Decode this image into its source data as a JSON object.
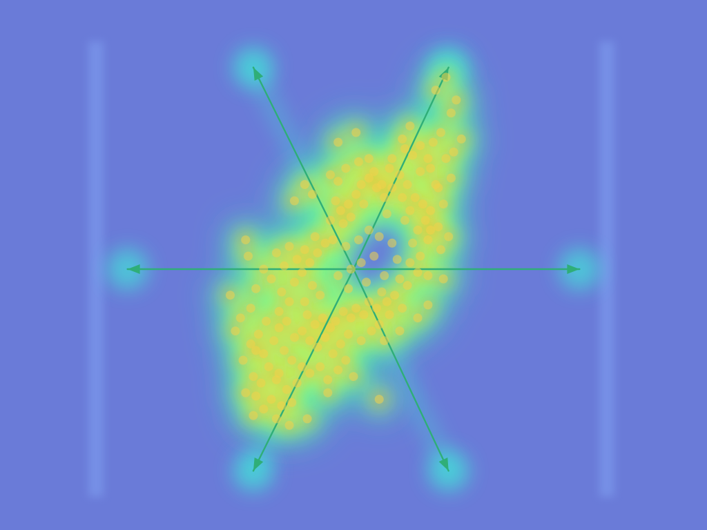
{
  "colors": {
    "background": "#6a7bd8",
    "frame_glow": "#7f9ff0",
    "arrow": "#2fae78",
    "arrow_glow": "#38ffd8",
    "points": "#f0d24a",
    "heat_low": "#38f0b8",
    "heat_mid": "#e8ff48",
    "heat_high": "#ff7a1e"
  },
  "chart_data": {
    "type": "scatter",
    "title": "",
    "xlabel": "",
    "ylabel": "",
    "grid": false,
    "legend": "none",
    "overlay": "density-heatmap",
    "xlim": [
      -10,
      10
    ],
    "ylim": [
      -7,
      7
    ],
    "arrows": [
      {
        "from": [
          0,
          0
        ],
        "to": [
          -8.8,
          0
        ]
      },
      {
        "from": [
          0,
          0
        ],
        "to": [
          8.8,
          0
        ]
      },
      {
        "from": [
          0,
          0
        ],
        "to": [
          -3.9,
          6.2
        ]
      },
      {
        "from": [
          0,
          0
        ],
        "to": [
          3.7,
          6.2
        ]
      },
      {
        "from": [
          0,
          0
        ],
        "to": [
          -3.9,
          -6.2
        ]
      },
      {
        "from": [
          0,
          0
        ],
        "to": [
          3.7,
          -6.2
        ]
      }
    ],
    "series": [
      {
        "values": [
          [
            3.6,
            5.9
          ],
          [
            3.8,
            4.8
          ],
          [
            3.4,
            4.2
          ],
          [
            3.1,
            3.9
          ],
          [
            3.6,
            3.4
          ],
          [
            3.8,
            2.8
          ],
          [
            3.2,
            2.6
          ],
          [
            2.9,
            3.4
          ],
          [
            2.6,
            3.0
          ],
          [
            1.4,
            3.1
          ],
          [
            1.8,
            2.9
          ],
          [
            0.8,
            3.0
          ],
          [
            1.1,
            2.6
          ],
          [
            2.1,
            2.6
          ],
          [
            2.4,
            2.2
          ],
          [
            2.7,
            2.0
          ],
          [
            3.0,
            1.8
          ],
          [
            2.8,
            1.5
          ],
          [
            2.5,
            1.2
          ],
          [
            2.9,
            0.9
          ],
          [
            3.3,
            1.3
          ],
          [
            2.2,
            1.8
          ],
          [
            1.9,
            2.2
          ],
          [
            1.5,
            2.5
          ],
          [
            1.2,
            2.2
          ],
          [
            0.9,
            2.5
          ],
          [
            0.6,
            2.8
          ],
          [
            0.3,
            2.6
          ],
          [
            0.1,
            2.3
          ],
          [
            -0.2,
            2.0
          ],
          [
            -0.5,
            1.8
          ],
          [
            -0.7,
            2.1
          ],
          [
            -0.9,
            1.5
          ],
          [
            -0.4,
            1.4
          ],
          [
            -0.6,
            2.7
          ],
          [
            -0.1,
            1.6
          ],
          [
            0.4,
            2.0
          ],
          [
            1.3,
            1.7
          ],
          [
            2.0,
            1.5
          ],
          [
            2.3,
            0.8
          ],
          [
            2.6,
            0.4
          ],
          [
            2.2,
            0.2
          ],
          [
            2.5,
            -0.1
          ],
          [
            2.9,
            -0.2
          ],
          [
            2.1,
            -0.5
          ],
          [
            1.8,
            -0.3
          ],
          [
            1.6,
            -0.8
          ],
          [
            1.3,
            -1.0
          ],
          [
            1.1,
            -0.7
          ],
          [
            0.9,
            -1.2
          ],
          [
            0.6,
            -1.0
          ],
          [
            0.4,
            -1.4
          ],
          [
            0.1,
            -1.2
          ],
          [
            -0.1,
            -1.5
          ],
          [
            -0.4,
            -1.3
          ],
          [
            -0.7,
            -1.6
          ],
          [
            -0.9,
            -1.8
          ],
          [
            -1.2,
            -1.5
          ],
          [
            -1.5,
            -1.7
          ],
          [
            -1.8,
            -1.4
          ],
          [
            -2.0,
            -1.9
          ],
          [
            -2.3,
            -2.1
          ],
          [
            -1.7,
            -2.2
          ],
          [
            -1.4,
            -2.4
          ],
          [
            -1.1,
            -2.1
          ],
          [
            -0.8,
            -2.6
          ],
          [
            -0.5,
            -2.3
          ],
          [
            -0.2,
            -2.0
          ],
          [
            0.3,
            -2.2
          ],
          [
            0.7,
            -1.9
          ],
          [
            1.0,
            -1.7
          ],
          [
            1.4,
            -1.4
          ],
          [
            1.9,
            -1.2
          ],
          [
            -2.6,
            -1.6
          ],
          [
            -2.9,
            -1.8
          ],
          [
            -3.1,
            -2.2
          ],
          [
            -2.7,
            -2.5
          ],
          [
            -2.4,
            -2.8
          ],
          [
            -2.0,
            -3.0
          ],
          [
            -1.7,
            -3.2
          ],
          [
            -1.3,
            -3.0
          ],
          [
            -1.0,
            -3.4
          ],
          [
            -2.2,
            -3.5
          ],
          [
            -2.6,
            -3.7
          ],
          [
            -3.0,
            -3.4
          ],
          [
            -3.3,
            -3.0
          ],
          [
            -3.5,
            -2.6
          ],
          [
            -3.7,
            -2.0
          ],
          [
            -2.9,
            -1.3
          ],
          [
            -2.5,
            -1.0
          ],
          [
            -2.8,
            -0.7
          ],
          [
            -2.3,
            -0.4
          ],
          [
            -2.0,
            -0.1
          ],
          [
            -1.7,
            0.2
          ],
          [
            -1.4,
            0.5
          ],
          [
            -1.1,
            0.8
          ],
          [
            -1.5,
            1.0
          ],
          [
            -1.9,
            0.6
          ],
          [
            -2.2,
            0.3
          ],
          [
            -1.6,
            -0.5
          ],
          [
            -1.3,
            -0.8
          ],
          [
            -1.9,
            -1.0
          ],
          [
            -0.8,
            0.9
          ],
          [
            -0.3,
            0.7
          ],
          [
            0.2,
            0.9
          ],
          [
            0.6,
            1.2
          ],
          [
            1.0,
            1.0
          ],
          [
            1.5,
            0.8
          ],
          [
            1.7,
            0.3
          ],
          [
            0.8,
            0.4
          ],
          [
            0.3,
            0.2
          ],
          [
            -0.1,
            0.0
          ],
          [
            -0.6,
            -0.2
          ],
          [
            -0.2,
            -0.6
          ],
          [
            0.5,
            -0.4
          ],
          [
            1.2,
            -0.2
          ],
          [
            -3.8,
            -3.9
          ],
          [
            -3.5,
            -4.3
          ],
          [
            -3.2,
            -4.0
          ],
          [
            -2.8,
            -4.2
          ],
          [
            -2.4,
            -4.1
          ],
          [
            -2.9,
            -3.2
          ],
          [
            -3.4,
            -1.6
          ],
          [
            -4.0,
            -1.2
          ],
          [
            -4.4,
            -1.5
          ],
          [
            -3.8,
            -0.6
          ],
          [
            -3.2,
            -0.3
          ],
          [
            -2.7,
            0.1
          ],
          [
            -3.0,
            0.5
          ],
          [
            -2.5,
            0.7
          ],
          [
            -3.5,
            0.0
          ],
          [
            -4.1,
            0.4
          ],
          [
            -3.8,
            -2.5
          ],
          [
            -4.3,
            -2.8
          ],
          [
            -3.9,
            -3.3
          ],
          [
            -4.2,
            -3.8
          ],
          [
            -3.6,
            -3.5
          ],
          [
            -1.0,
            -3.8
          ],
          [
            -0.6,
            -3.1
          ],
          [
            -0.3,
            -2.8
          ],
          [
            0.0,
            -3.3
          ],
          [
            -4.6,
            -1.9
          ],
          [
            -1.9,
            2.6
          ],
          [
            -2.3,
            2.1
          ],
          [
            -1.6,
            2.3
          ],
          [
            -0.9,
            2.9
          ],
          [
            -0.3,
            3.1
          ],
          [
            0.2,
            3.3
          ],
          [
            0.6,
            3.4
          ],
          [
            1.5,
            3.4
          ],
          [
            2.0,
            3.7
          ],
          [
            2.3,
            3.5
          ],
          [
            1.9,
            4.0
          ],
          [
            2.6,
            3.8
          ],
          [
            3.0,
            3.1
          ],
          [
            3.3,
            2.5
          ],
          [
            3.5,
            2.0
          ],
          [
            3.0,
            1.2
          ],
          [
            3.4,
            0.6
          ],
          [
            3.7,
            1.0
          ],
          [
            3.5,
            -0.3
          ],
          [
            2.9,
            -1.1
          ],
          [
            2.5,
            -1.5
          ],
          [
            1.8,
            -1.9
          ],
          [
            1.2,
            -2.2
          ],
          [
            -4.8,
            -0.8
          ],
          [
            -4.0,
            -2.3
          ],
          [
            -1.8,
            -4.6
          ],
          [
            -2.5,
            -4.8
          ],
          [
            -3.0,
            -4.6
          ],
          [
            -3.9,
            -4.5
          ],
          [
            1.0,
            -4.0
          ],
          [
            -4.2,
            0.9
          ],
          [
            -0.6,
            3.9
          ],
          [
            0.1,
            4.2
          ],
          [
            3.2,
            5.5
          ],
          [
            4.0,
            5.2
          ],
          [
            2.2,
            4.4
          ],
          [
            4.2,
            4.0
          ],
          [
            3.9,
            3.6
          ]
        ]
      }
    ]
  }
}
